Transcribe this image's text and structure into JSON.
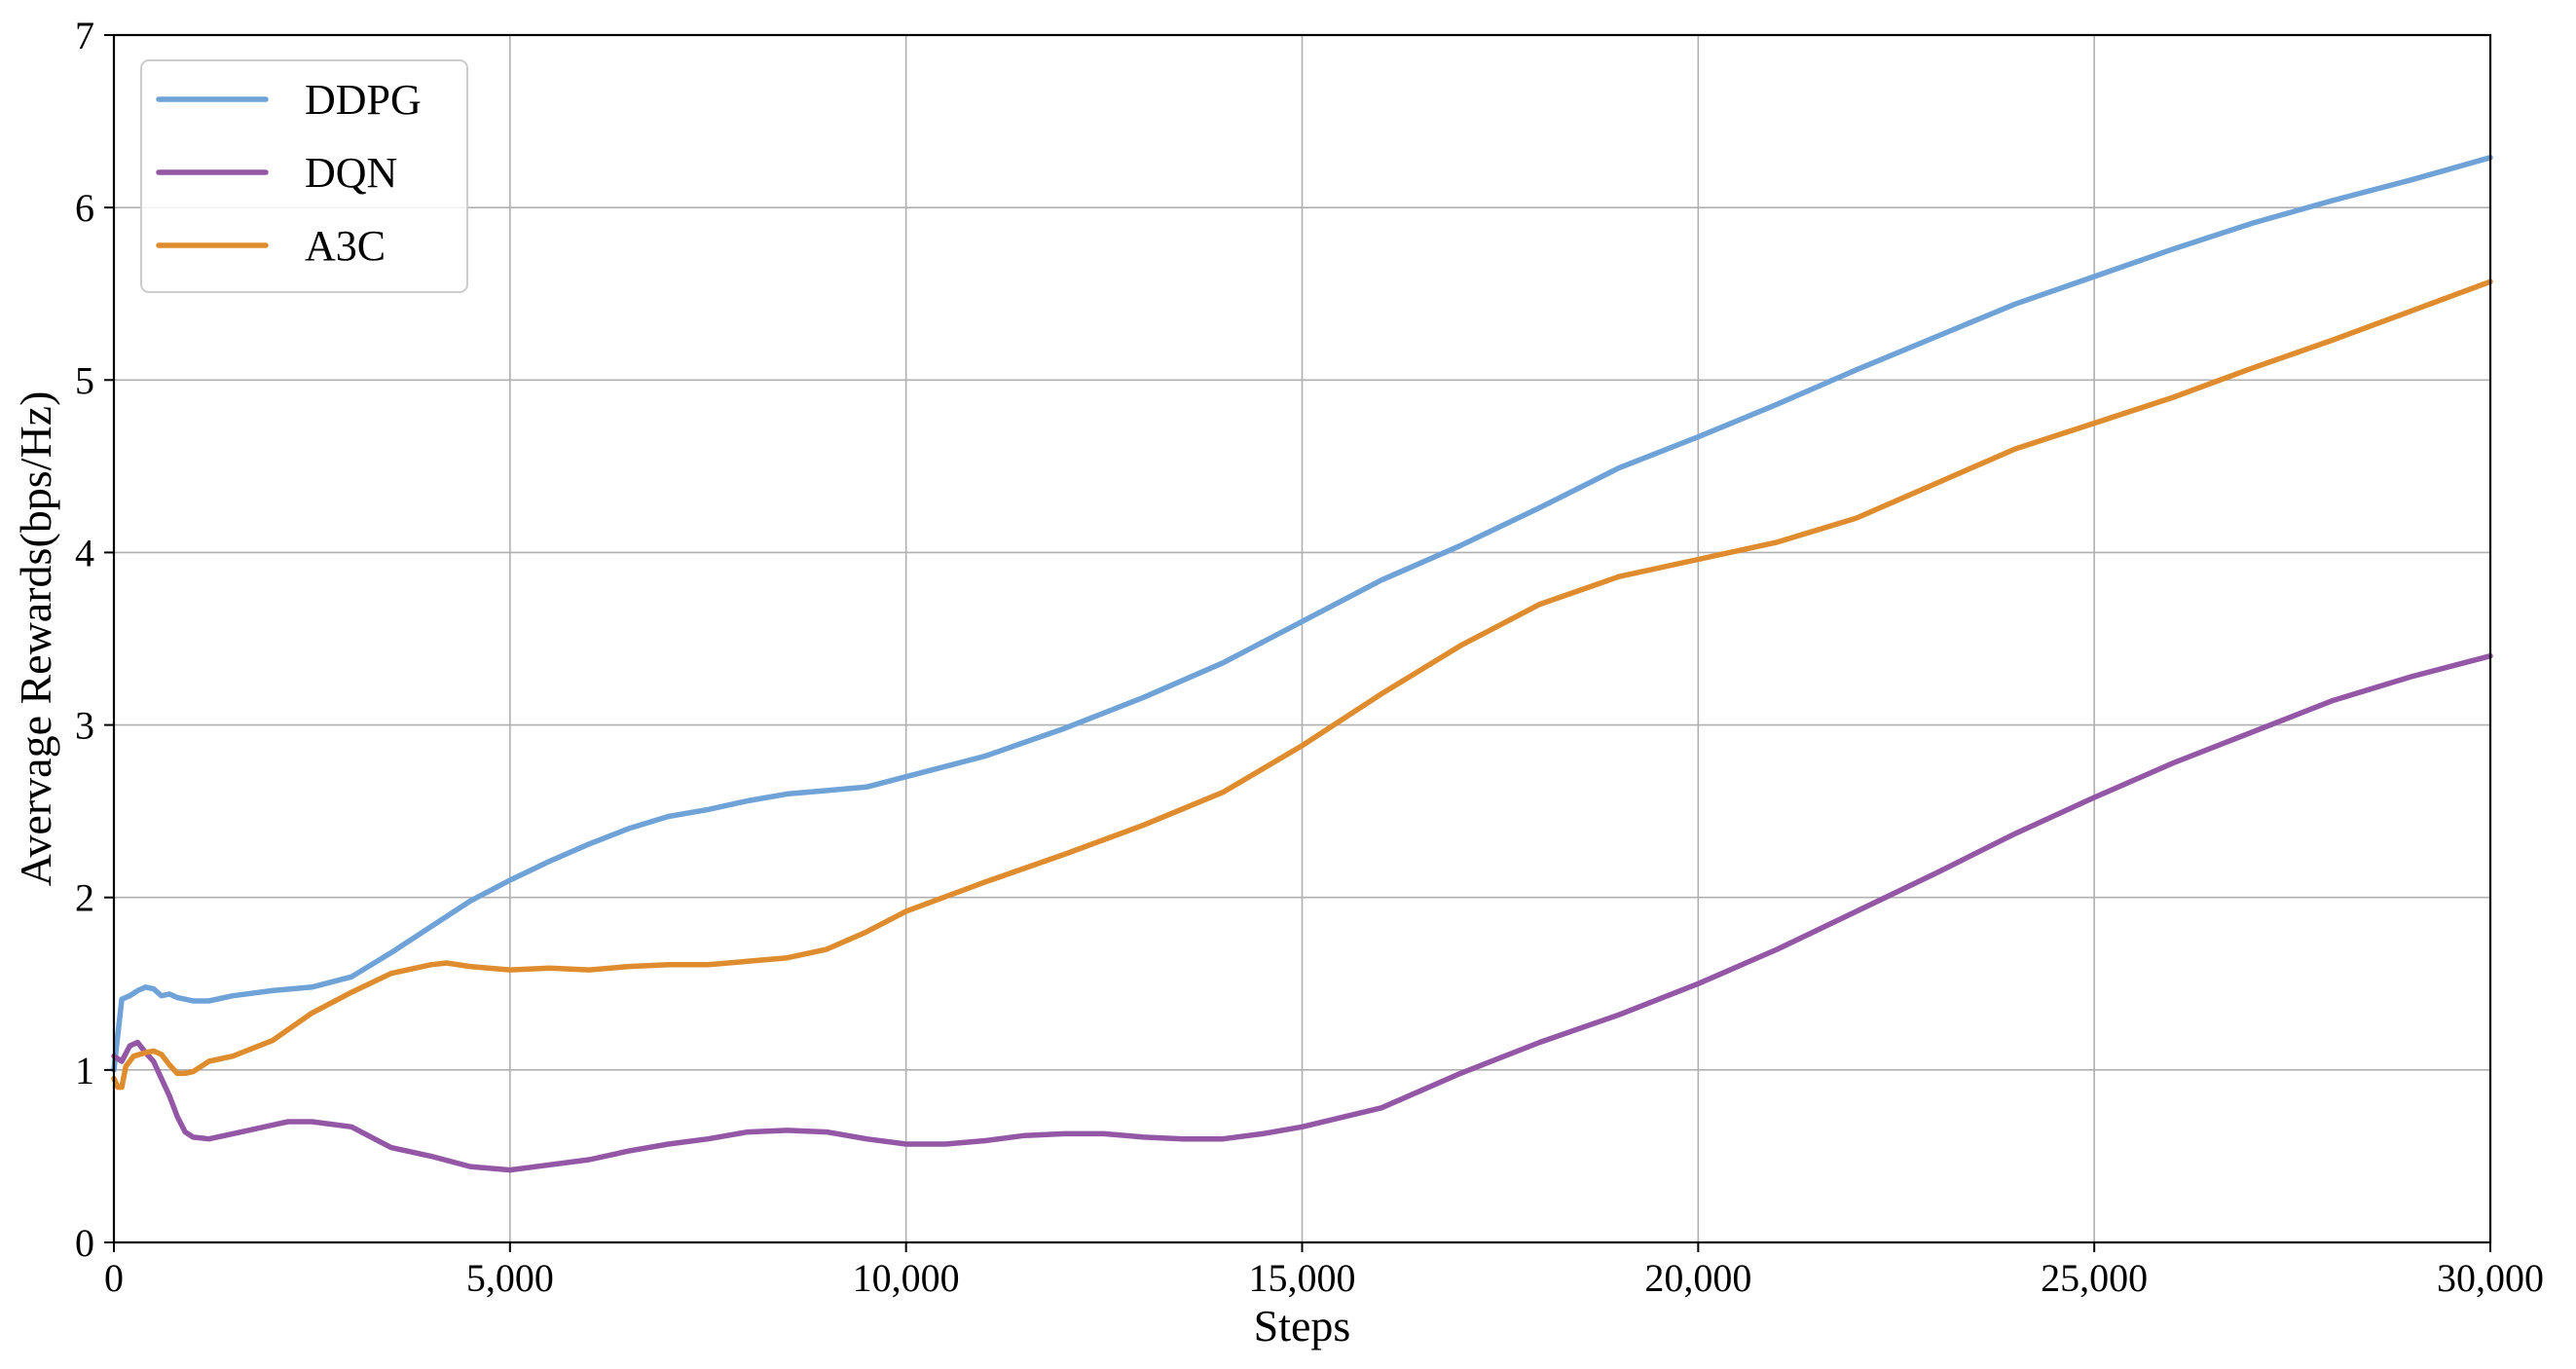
{
  "chart_data": {
    "type": "line",
    "title": "",
    "xlabel": "Steps",
    "ylabel": "Avervage Rewards(bps/Hz)",
    "xlim": [
      0,
      30000
    ],
    "ylim": [
      0,
      7
    ],
    "xticks": [
      0,
      5000,
      10000,
      15000,
      20000,
      25000,
      30000
    ],
    "xtick_labels": [
      "0",
      "5,000",
      "10,000",
      "15,000",
      "20,000",
      "25,000",
      "30,000"
    ],
    "yticks": [
      0,
      1,
      2,
      3,
      4,
      5,
      6,
      7
    ],
    "ytick_labels": [
      "0",
      "1",
      "2",
      "3",
      "4",
      "5",
      "6",
      "7"
    ],
    "grid": true,
    "legend_position": "top-left",
    "series": [
      {
        "name": "DDPG",
        "color": "#6fa3d8",
        "x": [
          0,
          100,
          200,
          300,
          400,
          500,
          600,
          700,
          800,
          900,
          1000,
          1200,
          1500,
          2000,
          2500,
          3000,
          3500,
          4000,
          4500,
          5000,
          5500,
          6000,
          6500,
          7000,
          7500,
          8000,
          8500,
          9000,
          9500,
          10000,
          11000,
          12000,
          13000,
          14000,
          15000,
          16000,
          17000,
          18000,
          19000,
          20000,
          21000,
          22000,
          23000,
          24000,
          25000,
          26000,
          27000,
          28000,
          29000,
          30000
        ],
        "y": [
          1.0,
          1.41,
          1.43,
          1.46,
          1.48,
          1.47,
          1.43,
          1.44,
          1.42,
          1.41,
          1.4,
          1.4,
          1.43,
          1.46,
          1.48,
          1.54,
          1.68,
          1.83,
          1.98,
          2.1,
          2.21,
          2.31,
          2.4,
          2.47,
          2.51,
          2.56,
          2.6,
          2.62,
          2.64,
          2.7,
          2.82,
          2.98,
          3.16,
          3.36,
          3.6,
          3.84,
          4.04,
          4.26,
          4.49,
          4.67,
          4.86,
          5.06,
          5.25,
          5.44,
          5.6,
          5.76,
          5.91,
          6.04,
          6.16,
          6.29
        ]
      },
      {
        "name": "DQN",
        "color": "#9457a6",
        "x": [
          0,
          100,
          200,
          300,
          400,
          500,
          600,
          700,
          800,
          900,
          1000,
          1200,
          1500,
          2000,
          2200,
          2500,
          3000,
          3500,
          4000,
          4500,
          5000,
          5500,
          6000,
          6500,
          7000,
          7500,
          8000,
          8500,
          9000,
          9500,
          10000,
          10500,
          11000,
          11500,
          12000,
          12500,
          13000,
          13500,
          14000,
          14500,
          15000,
          16000,
          17000,
          18000,
          19000,
          20000,
          21000,
          22000,
          23000,
          24000,
          25000,
          26000,
          27000,
          28000,
          29000,
          30000
        ],
        "y": [
          1.08,
          1.05,
          1.14,
          1.16,
          1.1,
          1.05,
          0.95,
          0.85,
          0.73,
          0.64,
          0.61,
          0.6,
          0.63,
          0.68,
          0.7,
          0.7,
          0.67,
          0.55,
          0.5,
          0.44,
          0.42,
          0.45,
          0.48,
          0.53,
          0.57,
          0.6,
          0.64,
          0.65,
          0.64,
          0.6,
          0.57,
          0.57,
          0.59,
          0.62,
          0.63,
          0.63,
          0.61,
          0.6,
          0.6,
          0.63,
          0.67,
          0.78,
          0.98,
          1.16,
          1.32,
          1.5,
          1.7,
          1.92,
          2.14,
          2.37,
          2.58,
          2.78,
          2.96,
          3.14,
          3.28,
          3.4
        ]
      },
      {
        "name": "A3C",
        "color": "#df8c2f",
        "x": [
          0,
          50,
          100,
          150,
          250,
          400,
          500,
          600,
          700,
          800,
          900,
          1000,
          1100,
          1200,
          1500,
          2000,
          2500,
          3000,
          3500,
          4000,
          4200,
          4500,
          5000,
          5500,
          6000,
          6500,
          7000,
          7500,
          8000,
          8500,
          9000,
          9500,
          10000,
          11000,
          12000,
          13000,
          14000,
          15000,
          16000,
          17000,
          18000,
          19000,
          20000,
          21000,
          22000,
          23000,
          24000,
          25000,
          26000,
          27000,
          28000,
          29000,
          30000
        ],
        "y": [
          0.95,
          0.9,
          0.9,
          1.02,
          1.08,
          1.1,
          1.11,
          1.09,
          1.03,
          0.98,
          0.98,
          0.99,
          1.02,
          1.05,
          1.08,
          1.17,
          1.33,
          1.45,
          1.56,
          1.61,
          1.62,
          1.6,
          1.58,
          1.59,
          1.58,
          1.6,
          1.61,
          1.61,
          1.63,
          1.65,
          1.7,
          1.8,
          1.92,
          2.09,
          2.25,
          2.42,
          2.61,
          2.88,
          3.18,
          3.46,
          3.7,
          3.86,
          3.96,
          4.06,
          4.2,
          4.4,
          4.6,
          4.75,
          4.9,
          5.07,
          5.23,
          5.4,
          5.57
        ]
      }
    ]
  }
}
